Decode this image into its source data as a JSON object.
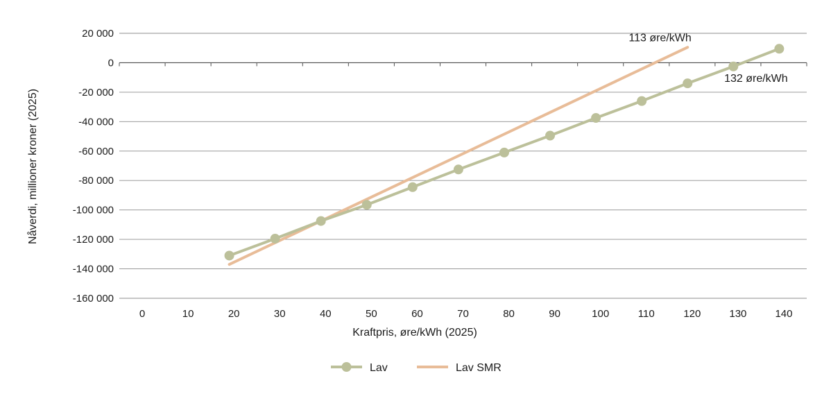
{
  "chart_data": {
    "type": "line",
    "title": "",
    "xlabel": "Kraftpris, øre/kWh (2025)",
    "ylabel": "Nåverdi, millioner kroner (2025)",
    "xlim": [
      -5,
      145
    ],
    "ylim": [
      -160000,
      20000
    ],
    "x_ticks": [
      0,
      10,
      20,
      30,
      40,
      50,
      60,
      70,
      80,
      90,
      100,
      110,
      120,
      130,
      140
    ],
    "x_tick_labels": [
      "0",
      "10",
      "20",
      "30",
      "40",
      "50",
      "60",
      "70",
      "80",
      "90",
      "100",
      "110",
      "120",
      "130",
      "140"
    ],
    "y_ticks": [
      20000,
      0,
      -20000,
      -40000,
      -60000,
      -80000,
      -100000,
      -120000,
      -140000,
      -160000
    ],
    "y_tick_labels": [
      "20 000",
      "0",
      "-20 000",
      "-40 000",
      "-60 000",
      "-80 000",
      "-100 000",
      "-120 000",
      "-140 000",
      "-160 000"
    ],
    "grid": true,
    "legend_position": "bottom-center",
    "series": [
      {
        "name": "Lav",
        "color": "#bcc09a",
        "markers": true,
        "x": [
          19,
          29,
          39,
          49,
          59,
          69,
          79,
          89,
          99,
          109,
          119,
          129,
          139
        ],
        "y": [
          -131000,
          -119500,
          -107500,
          -96500,
          -84500,
          -72500,
          -61000,
          -49500,
          -37500,
          -26000,
          -14000,
          -2500,
          9500
        ]
      },
      {
        "name": "Lav SMR",
        "color": "#e8bc98",
        "markers": false,
        "x": [
          19,
          119
        ],
        "y": [
          -137000,
          10500
        ]
      }
    ],
    "annotations": [
      {
        "text": "113 øre/kWh",
        "x": 113,
        "y": 14500,
        "anchor": "middle"
      },
      {
        "text": "132 øre/kWh",
        "x": 127,
        "y": -13000,
        "anchor": "start"
      }
    ]
  }
}
